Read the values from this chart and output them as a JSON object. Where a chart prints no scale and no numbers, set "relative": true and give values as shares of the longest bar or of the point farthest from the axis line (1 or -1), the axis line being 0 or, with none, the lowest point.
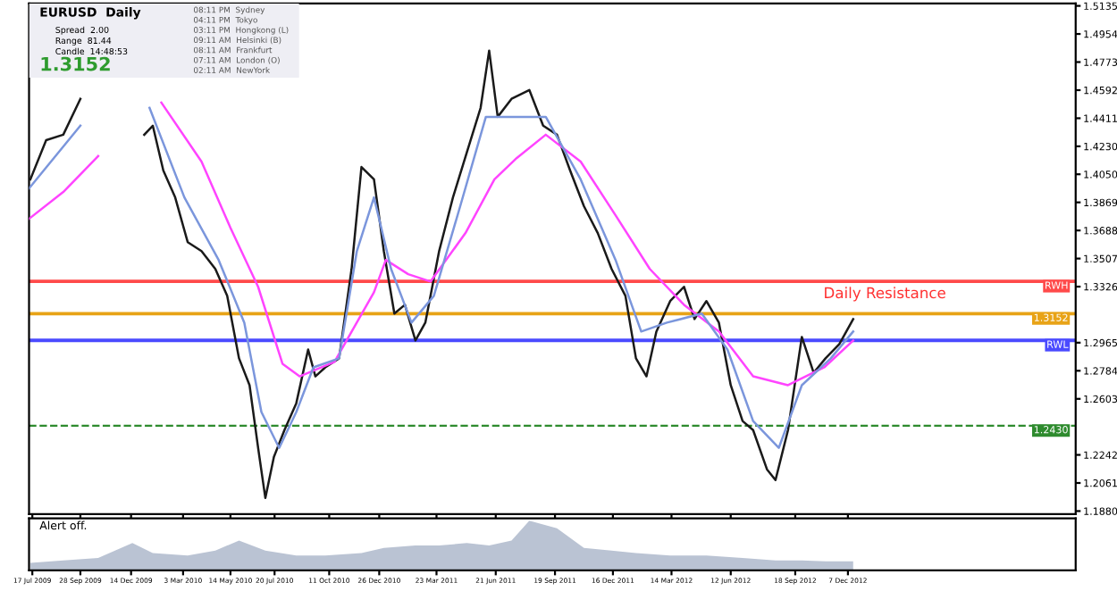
{
  "chart_data": [
    {
      "type": "line",
      "tick_labels": "y",
      "grid": false,
      "annotations": [
        "EURUSD  Daily",
        "Spread  2.00",
        "Range  81.44",
        "Candle  14:48:53",
        "1.3152",
        "08:11 PM  Sydney",
        "04:11 PM  Tokyo",
        "03:11 PM  Hongkong (L)",
        "09:11 AM  Helsinki (B)",
        "08:11 AM  Frankfurt",
        "07:11 AM  London (O)",
        "02:11 AM  NewYork",
        {
          "text": "Daily Resistance",
          "x": "2013-02-01",
          "y": 1.3152
        }
      ],
      "xlim": [
        "2009-07-12",
        "2013-11-18"
      ],
      "ylim": [
        1.186,
        1.515
      ],
      "xticks": [
        "2009-07-17",
        "2009-09-28",
        "2009-12-14",
        "2010-03-03",
        "2010-05-14",
        "2010-07-20",
        "2010-10-11",
        "2010-12-26",
        "2011-03-23",
        "2011-06-21",
        "2011-09-19",
        "2011-12-16",
        "2012-03-14",
        "2012-06-12",
        "2012-09-18",
        "2012-12-07"
      ],
      "yticks": [
        {
          "value": 1.188,
          "label": "1.1880"
        },
        {
          "value": 1.2061,
          "label": "1.2061"
        },
        {
          "value": 1.2242,
          "label": "1.2242"
        },
        {
          "value": 1.2603,
          "label": "1.2603"
        },
        {
          "value": 1.2784,
          "label": "1.2784"
        },
        {
          "value": 1.2965,
          "label": "1.2965"
        },
        {
          "value": 1.3326,
          "label": "1.3326"
        },
        {
          "value": 1.3507,
          "label": "1.3507"
        },
        {
          "value": 1.3688,
          "label": "1.3688"
        },
        {
          "value": 1.3869,
          "label": "1.3869"
        },
        {
          "value": 1.405,
          "label": "1.4050"
        },
        {
          "value": 1.423,
          "label": "1.4230"
        },
        {
          "value": 1.4411,
          "label": "1.4411"
        },
        {
          "value": 1.4592,
          "label": "1.4592"
        },
        {
          "value": 1.4773,
          "label": "1.4773"
        },
        {
          "value": 1.4954,
          "label": "1.4954"
        },
        {
          "value": 1.5135,
          "label": "1.5135"
        }
      ],
      "ref_lines": [
        {
          "axis": "y",
          "value": 1.3152,
          "label": "1.3152",
          "color": "#e8a317",
          "line_style": "solid"
        },
        {
          "axis": "y",
          "value": 1.243,
          "label": "1.2430",
          "color": "#2e8b2e",
          "line_style": "dashed"
        },
        {
          "axis": "y",
          "value": 1.336,
          "label": "RWH",
          "color": "#ff4a4a",
          "line_style": "solid"
        },
        {
          "axis": "y",
          "value": 1.298,
          "label": "RWL",
          "color": "#4a4aff",
          "line_style": "solid"
        }
      ],
      "series": [
        {
          "color": "#1a1a1a",
          "x": [
            "2009-07-14",
            "2009-08-07",
            "2009-09-02",
            "2009-09-28",
            "2009-10-25",
            "2009-11-20",
            "2009-12-16",
            "2010-01-03",
            "2010-01-16",
            "2010-02-01",
            "2010-02-19",
            "2010-03-10",
            "2010-03-31",
            "2010-04-21",
            "2010-05-09",
            "2010-05-27",
            "2010-06-12",
            "2010-06-25",
            "2010-07-06",
            "2010-07-19",
            "2010-08-04",
            "2010-08-22",
            "2010-09-09",
            "2010-09-20",
            "2010-10-05",
            "2010-10-26",
            "2010-11-14",
            "2010-11-29",
            "2010-12-18",
            "2011-01-02",
            "2011-01-18",
            "2011-02-03",
            "2011-02-19",
            "2011-03-06",
            "2011-03-27",
            "2011-04-17",
            "2011-05-08",
            "2011-05-29",
            "2011-06-11",
            "2011-06-24",
            "2011-07-15",
            "2011-08-11",
            "2011-09-01",
            "2011-09-22",
            "2011-10-12",
            "2011-11-02",
            "2011-11-23",
            "2011-12-14",
            "2012-01-04",
            "2012-01-20",
            "2012-02-05",
            "2012-02-20",
            "2012-03-12",
            "2012-04-02",
            "2012-04-18",
            "2012-05-06",
            "2012-05-25",
            "2012-06-12",
            "2012-06-30",
            "2012-07-16",
            "2012-08-06",
            "2012-08-19",
            "2012-09-07",
            "2012-09-28",
            "2012-10-16",
            "2012-11-03",
            "2012-11-24",
            "2012-12-15"
          ],
          "values": [
            1.4017,
            1.427,
            1.4305,
            1.4536,
            null,
            null,
            null,
            1.4305,
            1.4363,
            1.4074,
            1.3901,
            1.3613,
            1.3555,
            1.344,
            1.3267,
            1.2864,
            1.2691,
            1.2287,
            1.1964,
            1.2229,
            1.2402,
            1.2575,
            1.2921,
            1.2748,
            1.2806,
            1.2864,
            1.344,
            1.4097,
            1.4017,
            1.3555,
            1.3152,
            1.3209,
            1.2979,
            1.3094,
            1.3555,
            1.3901,
            1.419,
            1.4478,
            1.4847,
            1.442,
            1.4536,
            1.4593,
            1.4363,
            1.4305,
            1.4074,
            1.3844,
            1.3671,
            1.344,
            1.3267,
            1.2864,
            1.2748,
            1.3036,
            1.3233,
            1.3325,
            1.3117,
            1.3233,
            1.3094,
            1.2691,
            1.246,
            1.2402,
            1.2149,
            1.208,
            1.2402,
            1.3002,
            1.2771,
            1.2864,
            1.2956,
            1.3117
          ]
        },
        {
          "color": "#ff44ff",
          "x": [
            "2009-07-12",
            "2009-09-02",
            "2009-10-25",
            "2009-12-24",
            "2010-01-29",
            "2010-03-31",
            "2010-05-14",
            "2010-06-25",
            "2010-08-01",
            "2010-08-27",
            "2010-10-19",
            "2010-12-18",
            "2011-01-05",
            "2011-02-08",
            "2011-03-14",
            "2011-05-06",
            "2011-06-19",
            "2011-07-23",
            "2011-09-05",
            "2011-10-28",
            "2011-12-20",
            "2012-02-10",
            "2012-04-02",
            "2012-05-25",
            "2012-07-16",
            "2012-09-07",
            "2012-11-01",
            "2012-12-15"
          ],
          "values": [
            1.3763,
            1.3936,
            1.4167,
            null,
            1.4512,
            1.4132,
            1.3705,
            1.3325,
            1.2829,
            1.2748,
            1.2841,
            1.329,
            1.3498,
            1.3406,
            1.3359,
            1.3671,
            1.4017,
            1.4155,
            1.4305,
            1.4132,
            1.3786,
            1.344,
            1.3209,
            1.3037,
            1.2748,
            1.2691,
            1.2806,
            1.2979
          ]
        },
        {
          "color": "#7b96dc",
          "x": [
            "2009-07-12",
            "2009-09-28",
            "2009-12-03",
            "2010-01-11",
            "2010-03-05",
            "2010-04-26",
            "2010-06-04",
            "2010-06-30",
            "2010-07-27",
            "2010-08-22",
            "2010-09-17",
            "2010-10-26",
            "2010-11-22",
            "2010-12-18",
            "2011-01-13",
            "2011-02-13",
            "2011-03-19",
            "2011-04-28",
            "2011-06-06",
            "2011-07-15",
            "2011-09-05",
            "2011-10-28",
            "2011-12-20",
            "2012-01-28",
            "2012-03-07",
            "2012-04-29",
            "2012-06-07",
            "2012-07-16",
            "2012-08-24",
            "2012-09-28",
            "2012-11-11",
            "2012-12-15"
          ],
          "values": [
            1.3959,
            1.4363,
            null,
            1.4478,
            1.3901,
            1.3498,
            1.3094,
            1.2518,
            1.2287,
            1.2518,
            1.2806,
            1.2864,
            1.3555,
            1.3901,
            1.344,
            1.3094,
            1.3267,
            1.3844,
            1.442,
            1.442,
            1.442,
            1.4017,
            1.3498,
            1.3037,
            1.3094,
            1.3152,
            1.2921,
            1.246,
            1.2287,
            1.2691,
            1.2864,
            1.3037
          ]
        }
      ]
    },
    {
      "type": "area",
      "relative": true,
      "tick_labels": "x",
      "grid": false,
      "annotations": [
        "Alert off."
      ],
      "xlim": [
        "2009-07-12",
        "2013-11-18"
      ],
      "xticks": [
        {
          "value": "2009-07-17",
          "label": "17 Jul 2009"
        },
        {
          "value": "2009-09-28",
          "label": "28 Sep 2009"
        },
        {
          "value": "2009-12-14",
          "label": "14 Dec 2009"
        },
        {
          "value": "2010-03-03",
          "label": "3 Mar 2010"
        },
        {
          "value": "2010-05-14",
          "label": "14 May 2010"
        },
        {
          "value": "2010-07-20",
          "label": "20 Jul 2010"
        },
        {
          "value": "2010-10-11",
          "label": "11 Oct 2010"
        },
        {
          "value": "2010-12-26",
          "label": "26 Dec 2010"
        },
        {
          "value": "2011-03-23",
          "label": "23 Mar 2011"
        },
        {
          "value": "2011-06-21",
          "label": "21 Jun 2011"
        },
        {
          "value": "2011-09-19",
          "label": "19 Sep 2011"
        },
        {
          "value": "2011-12-16",
          "label": "16 Dec 2011"
        },
        {
          "value": "2012-03-14",
          "label": "14 Mar 2012"
        },
        {
          "value": "2012-06-12",
          "label": "12 Jun 2012"
        },
        {
          "value": "2012-09-18",
          "label": "18 Sep 2012"
        },
        {
          "value": "2012-12-07",
          "label": "7 Dec 2012"
        }
      ],
      "series": [
        {
          "color": "#a9b4c8",
          "x": [
            "2009-07-14",
            "2009-09-02",
            "2009-10-25",
            "2009-12-16",
            "2010-01-16",
            "2010-03-10",
            "2010-04-21",
            "2010-05-27",
            "2010-07-06",
            "2010-08-22",
            "2010-10-05",
            "2010-11-29",
            "2011-01-02",
            "2011-02-19",
            "2011-03-27",
            "2011-05-08",
            "2011-06-11",
            "2011-07-15",
            "2011-08-11",
            "2011-09-22",
            "2011-11-02",
            "2011-12-14",
            "2012-01-20",
            "2012-03-12",
            "2012-05-06",
            "2012-06-30",
            "2012-08-19",
            "2012-09-28",
            "2012-11-03",
            "2012-12-15"
          ],
          "values": [
            0.15,
            0.2,
            0.25,
            0.55,
            0.35,
            0.3,
            0.4,
            0.6,
            0.4,
            0.3,
            0.3,
            0.35,
            0.45,
            0.5,
            0.5,
            0.55,
            0.5,
            0.6,
            1,
            0.85,
            0.45,
            0.4,
            0.35,
            0.3,
            0.3,
            0.25,
            0.2,
            0.2,
            0.18,
            0.18
          ]
        }
      ]
    }
  ]
}
